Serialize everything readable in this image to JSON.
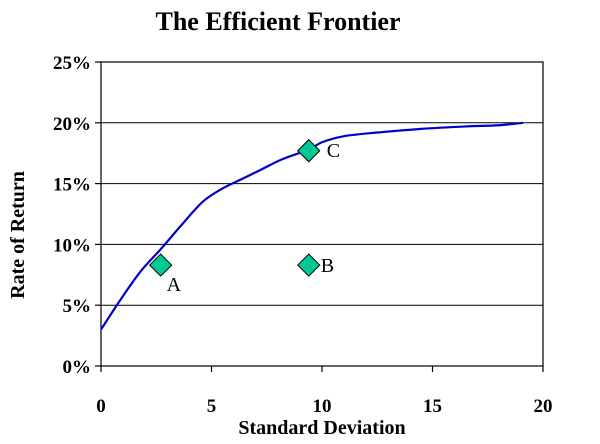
{
  "chart_data": {
    "type": "line",
    "title": "The Efficient Frontier",
    "xlabel": "Standard Deviation",
    "ylabel": "Rate of Return",
    "xlim": [
      0,
      20
    ],
    "ylim": [
      0,
      25
    ],
    "x_ticks": [
      "0",
      "5",
      "10",
      "15",
      "20"
    ],
    "x_tick_values": [
      0,
      5,
      10,
      15,
      20
    ],
    "y_ticks": [
      "0%",
      "5%",
      "10%",
      "15%",
      "20%",
      "25%"
    ],
    "y_tick_values": [
      0,
      5,
      10,
      15,
      20,
      25
    ],
    "grid": "horizontal",
    "series": [
      {
        "color": "#0000cc",
        "x": [
          0,
          0.9,
          1.8,
          2.7,
          3.6,
          4.6,
          5.5,
          6.4,
          7.3,
          8.2,
          9.4,
          10.0,
          11.0,
          12.5,
          14.5,
          16.5,
          18.0,
          19.1
        ],
        "y": [
          3.0,
          5.5,
          7.8,
          9.6,
          11.5,
          13.5,
          14.6,
          15.4,
          16.2,
          17.0,
          17.8,
          18.4,
          18.9,
          19.2,
          19.5,
          19.7,
          19.8,
          20.0
        ]
      }
    ],
    "points": [
      {
        "label": "A",
        "x": 2.7,
        "y": 8.3,
        "color": "#00c896"
      },
      {
        "label": "B",
        "x": 9.4,
        "y": 8.3,
        "color": "#00c896"
      },
      {
        "label": "C",
        "x": 9.4,
        "y": 17.7,
        "color": "#00c896"
      }
    ]
  }
}
